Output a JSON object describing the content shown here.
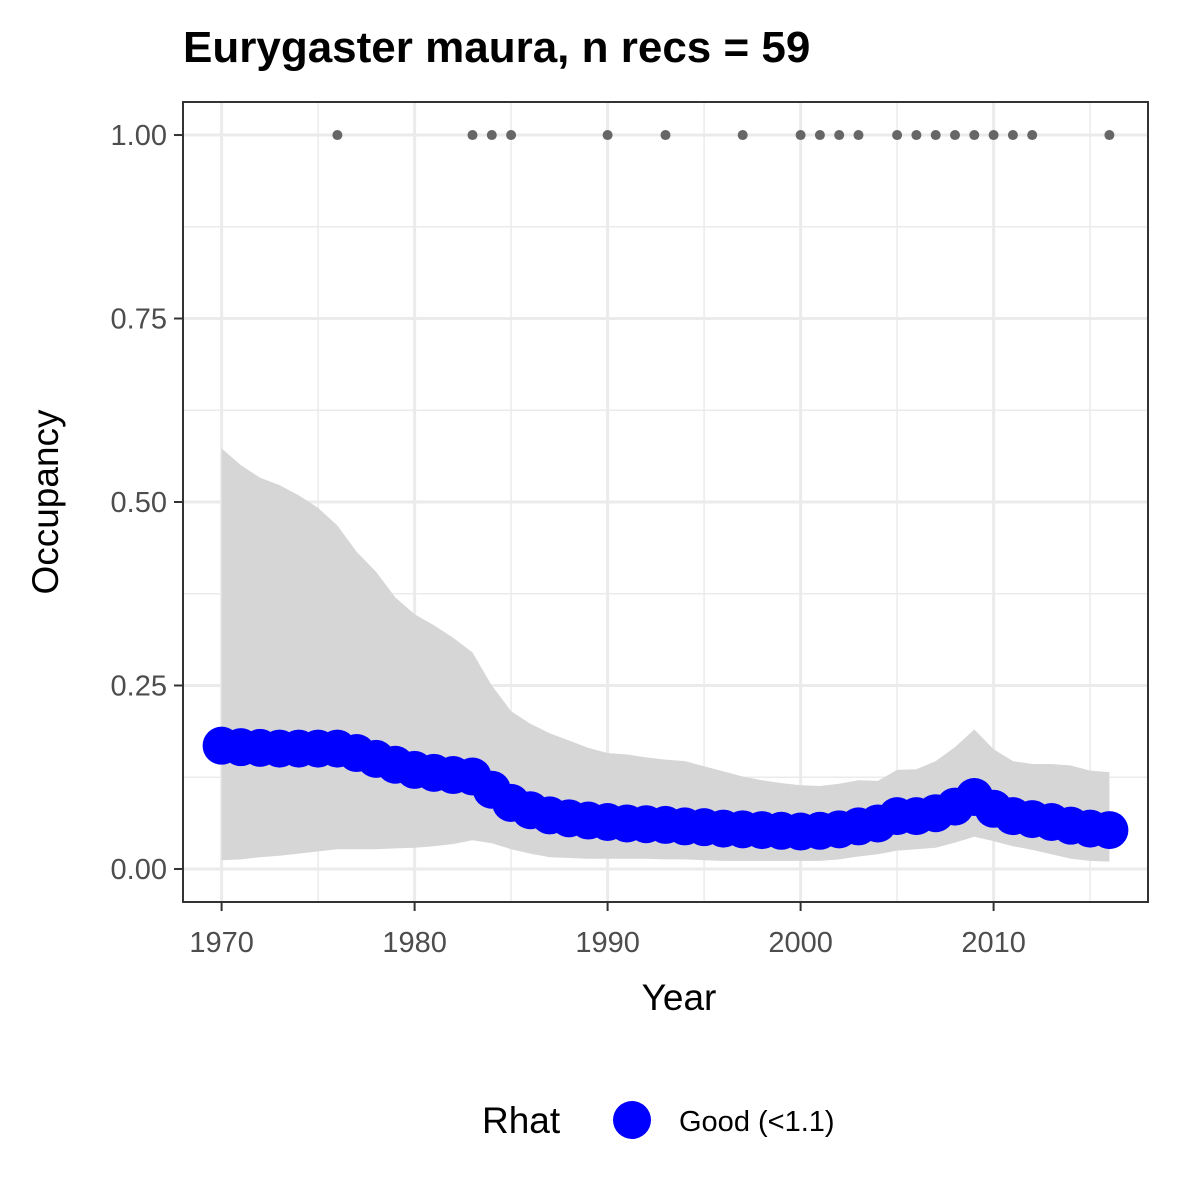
{
  "chart_data": {
    "type": "line",
    "title": "Eurygaster maura, n recs = 59",
    "xlabel": "Year",
    "ylabel": "Occupancy",
    "xlim": [
      1968,
      2018
    ],
    "ylim": [
      -0.045,
      1.045
    ],
    "x_ticks": [
      1970,
      1980,
      1990,
      2000,
      2010
    ],
    "y_ticks": [
      0.0,
      0.25,
      0.5,
      0.75,
      1.0
    ],
    "x_tick_labels": [
      "1970",
      "1980",
      "1990",
      "2000",
      "2010"
    ],
    "y_tick_labels": [
      "0.00",
      "0.25",
      "0.50",
      "0.75",
      "1.00"
    ],
    "grid": true,
    "legend": {
      "position": "bottom",
      "title": "Rhat",
      "entries": [
        {
          "label": "Good (<1.1)",
          "color": "#0000ff"
        }
      ]
    },
    "colors": {
      "mean": "#0000ff",
      "ribbon": "#d6d6d6",
      "records": "#666666",
      "grid": "#ebebeb",
      "panel_border": "#333333"
    },
    "years": [
      1970,
      1971,
      1972,
      1973,
      1974,
      1975,
      1976,
      1977,
      1978,
      1979,
      1980,
      1981,
      1982,
      1983,
      1984,
      1985,
      1986,
      1987,
      1988,
      1989,
      1990,
      1991,
      1992,
      1993,
      1994,
      1995,
      1996,
      1997,
      1998,
      1999,
      2000,
      2001,
      2002,
      2003,
      2004,
      2005,
      2006,
      2007,
      2008,
      2009,
      2010,
      2011,
      2012,
      2013,
      2014,
      2015,
      2016
    ],
    "series": [
      {
        "name": "Good (<1.1)",
        "mean": [
          0.168,
          0.166,
          0.165,
          0.164,
          0.164,
          0.164,
          0.164,
          0.158,
          0.15,
          0.142,
          0.135,
          0.131,
          0.128,
          0.126,
          0.108,
          0.09,
          0.08,
          0.073,
          0.069,
          0.066,
          0.064,
          0.062,
          0.061,
          0.06,
          0.058,
          0.057,
          0.055,
          0.054,
          0.053,
          0.052,
          0.051,
          0.052,
          0.054,
          0.058,
          0.062,
          0.072,
          0.072,
          0.076,
          0.085,
          0.098,
          0.082,
          0.072,
          0.068,
          0.064,
          0.059,
          0.055,
          0.053
        ],
        "lower": [
          0.012,
          0.013,
          0.016,
          0.018,
          0.021,
          0.024,
          0.027,
          0.027,
          0.027,
          0.028,
          0.029,
          0.031,
          0.034,
          0.039,
          0.035,
          0.027,
          0.021,
          0.016,
          0.015,
          0.014,
          0.014,
          0.014,
          0.014,
          0.013,
          0.013,
          0.012,
          0.011,
          0.011,
          0.011,
          0.011,
          0.011,
          0.011,
          0.013,
          0.017,
          0.02,
          0.025,
          0.027,
          0.029,
          0.036,
          0.044,
          0.038,
          0.031,
          0.026,
          0.02,
          0.014,
          0.011,
          0.01
        ],
        "upper": [
          0.573,
          0.55,
          0.533,
          0.523,
          0.509,
          0.492,
          0.468,
          0.432,
          0.405,
          0.37,
          0.347,
          0.332,
          0.315,
          0.295,
          0.25,
          0.215,
          0.198,
          0.185,
          0.175,
          0.165,
          0.158,
          0.156,
          0.152,
          0.149,
          0.147,
          0.14,
          0.133,
          0.126,
          0.121,
          0.117,
          0.114,
          0.113,
          0.116,
          0.121,
          0.12,
          0.135,
          0.136,
          0.147,
          0.166,
          0.19,
          0.163,
          0.147,
          0.143,
          0.143,
          0.141,
          0.134,
          0.132
        ]
      }
    ],
    "records": {
      "y": 1.0,
      "years": [
        1976,
        1983,
        1984,
        1985,
        1990,
        1993,
        1997,
        2000,
        2001,
        2002,
        2003,
        2005,
        2006,
        2007,
        2008,
        2009,
        2010,
        2011,
        2012,
        2016
      ]
    }
  }
}
